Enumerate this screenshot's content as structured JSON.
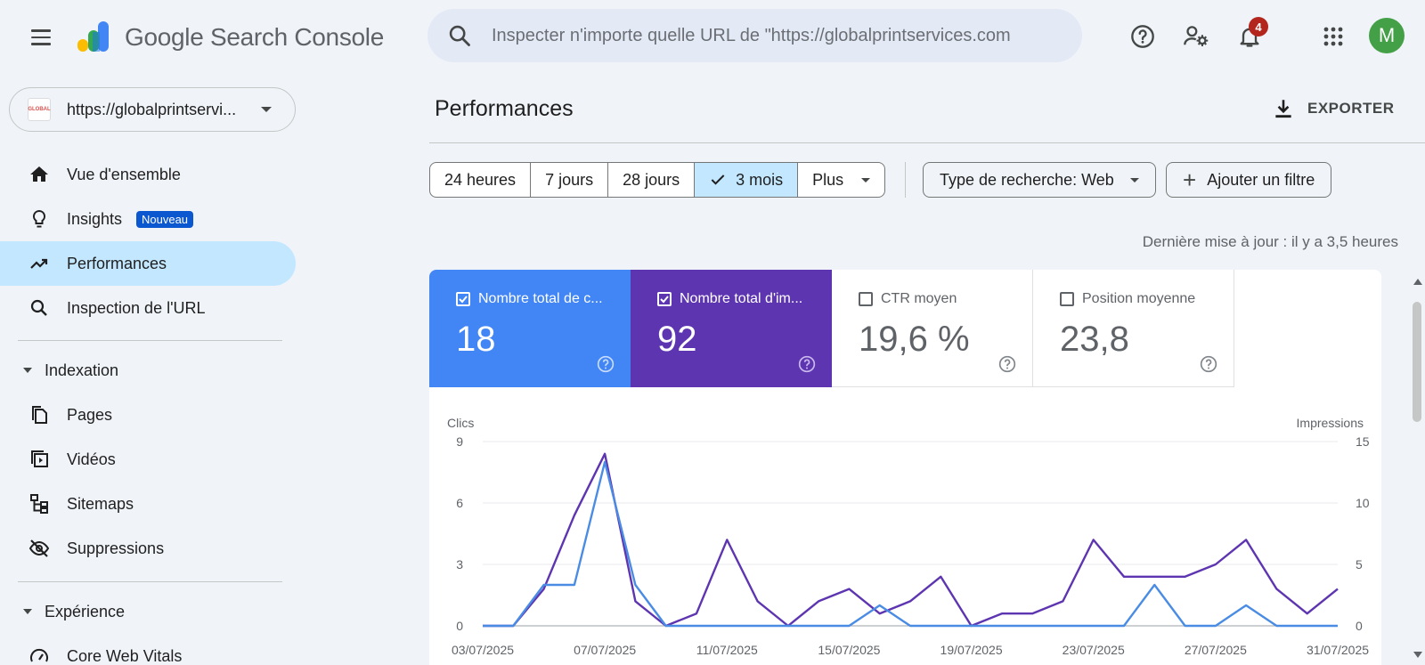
{
  "app": {
    "title": "Google Search Console"
  },
  "search": {
    "placeholder": "Inspecter n'importe quelle URL de \"https://globalprintservices.com"
  },
  "header_icons": [
    "menu-icon",
    "help-icon",
    "manage-users-icon",
    "notifications-icon",
    "apps-grid-icon"
  ],
  "notifications": {
    "count": "4"
  },
  "user": {
    "initial": "M",
    "avatar_color": "#43a047"
  },
  "property": {
    "name": "https://globalprintservi..."
  },
  "sidebar": {
    "items": [
      {
        "label": "Vue d'ensemble",
        "icon": "home-icon"
      },
      {
        "label": "Insights",
        "icon": "lightbulb-icon",
        "tag": "Nouveau"
      },
      {
        "label": "Performances",
        "icon": "trending-up-icon",
        "active": true
      },
      {
        "label": "Inspection de l'URL",
        "icon": "search-icon"
      }
    ],
    "sections": [
      {
        "label": "Indexation",
        "items": [
          {
            "label": "Pages",
            "icon": "pages-icon"
          },
          {
            "label": "Vidéos",
            "icon": "video-icon"
          },
          {
            "label": "Sitemaps",
            "icon": "sitemap-icon"
          },
          {
            "label": "Suppressions",
            "icon": "eye-off-icon"
          }
        ]
      },
      {
        "label": "Expérience",
        "items": [
          {
            "label": "Core Web Vitals",
            "icon": "speedometer-icon"
          }
        ]
      }
    ]
  },
  "main": {
    "title": "Performances",
    "export_label": "EXPORTER",
    "date_ranges": [
      "24 heures",
      "7 jours",
      "28 jours",
      "3 mois",
      "Plus"
    ],
    "selected_range": "3 mois",
    "search_type": "Type de recherche: Web",
    "add_filter": "Ajouter un filtre",
    "last_update": "Dernière mise à jour : il y a 3,5 heures"
  },
  "metrics": [
    {
      "label": "Nombre total de c...",
      "value": "18",
      "checked": true,
      "color": "#4285f4"
    },
    {
      "label": "Nombre total d'im...",
      "value": "92",
      "checked": true,
      "color": "#5e35b1"
    },
    {
      "label": "CTR moyen",
      "value": "19,6 %",
      "checked": false
    },
    {
      "label": "Position moyenne",
      "value": "23,8",
      "checked": false
    }
  ],
  "chart_data": {
    "type": "line",
    "left_axis_label": "Clics",
    "right_axis_label": "Impressions",
    "left_ticks": [
      0,
      3,
      6,
      9
    ],
    "right_ticks": [
      0,
      5,
      10,
      15
    ],
    "left_ylim": [
      0,
      9
    ],
    "right_ylim": [
      0,
      15
    ],
    "x_tick_labels": [
      "03/07/2025",
      "07/07/2025",
      "11/07/2025",
      "15/07/2025",
      "19/07/2025",
      "23/07/2025",
      "27/07/2025",
      "31/07/2025"
    ],
    "x": [
      "03/07/2025",
      "04/07/2025",
      "05/07/2025",
      "06/07/2025",
      "07/07/2025",
      "08/07/2025",
      "09/07/2025",
      "10/07/2025",
      "11/07/2025",
      "12/07/2025",
      "13/07/2025",
      "14/07/2025",
      "15/07/2025",
      "16/07/2025",
      "17/07/2025",
      "18/07/2025",
      "19/07/2025",
      "20/07/2025",
      "21/07/2025",
      "22/07/2025",
      "23/07/2025",
      "24/07/2025",
      "25/07/2025",
      "26/07/2025",
      "27/07/2025",
      "28/07/2025",
      "29/07/2025",
      "30/07/2025",
      "31/07/2025"
    ],
    "series": [
      {
        "name": "Clics",
        "axis": "left",
        "color": "#4a8ce4",
        "values": [
          0,
          0,
          2,
          2,
          8,
          2,
          0,
          0,
          0,
          0,
          0,
          0,
          0,
          1,
          0,
          0,
          0,
          0,
          0,
          0,
          0,
          0,
          2,
          0,
          0,
          1,
          0,
          0,
          0
        ]
      },
      {
        "name": "Impressions",
        "axis": "right",
        "color": "#5e35b1",
        "values": [
          0,
          0,
          3,
          9,
          14,
          2,
          0,
          1,
          7,
          2,
          0,
          2,
          3,
          1,
          2,
          4,
          0,
          1,
          1,
          2,
          7,
          4,
          4,
          4,
          5,
          7,
          3,
          1,
          3
        ]
      }
    ],
    "grid": true
  }
}
